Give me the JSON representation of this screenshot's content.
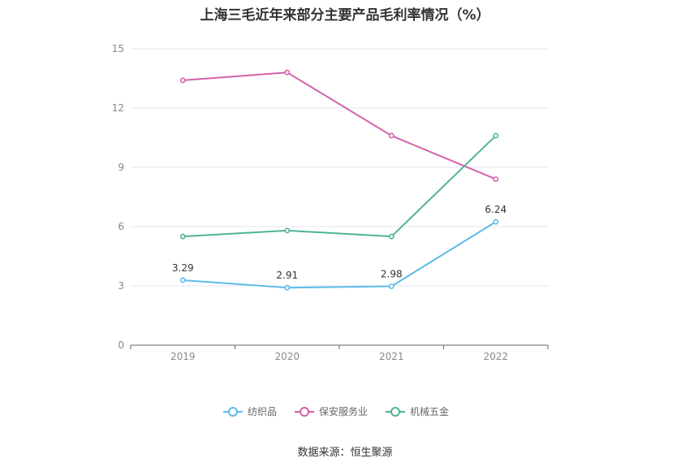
{
  "chart_data": {
    "type": "line",
    "title": "上海三毛近年来部分主要产品毛利率情况（%）",
    "categories": [
      "2019",
      "2020",
      "2021",
      "2022"
    ],
    "ylim": [
      0,
      15
    ],
    "yticks": [
      0,
      3,
      6,
      9,
      12,
      15
    ],
    "grid": true,
    "legend_position": "bottom-center",
    "series": [
      {
        "name": "纺织品",
        "color": "#5bbce8",
        "values": [
          3.29,
          2.91,
          2.98,
          6.24
        ],
        "labels": [
          "3.29",
          "2.91",
          "2.98",
          "6.24"
        ]
      },
      {
        "name": "保安服务业",
        "color": "#d461aa",
        "values": [
          13.4,
          13.8,
          10.6,
          8.4
        ]
      },
      {
        "name": "机械五金",
        "color": "#4fb398",
        "values": [
          5.5,
          5.8,
          5.5,
          10.6
        ]
      }
    ]
  },
  "source": "数据来源：恒生聚源"
}
